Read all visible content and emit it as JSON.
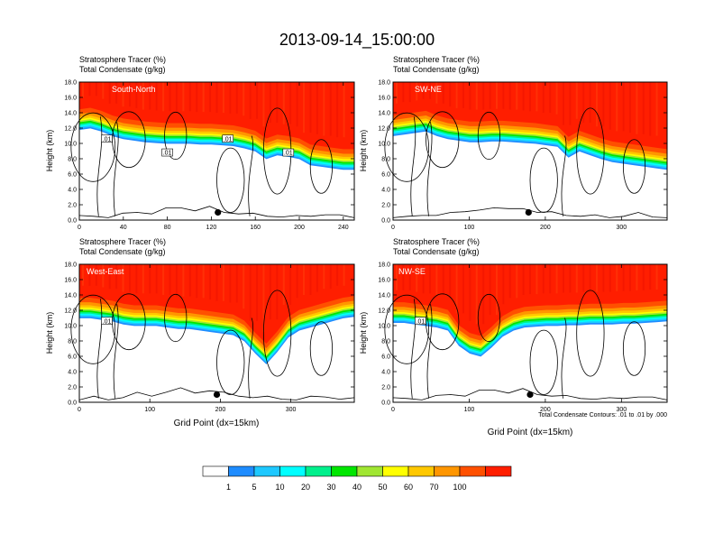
{
  "page": {
    "title": "2013-09-14_15:00:00"
  },
  "chart_data": [
    {
      "type": "heatmap",
      "panel": "South-North",
      "subtitle_lines": [
        "Stratosphere Tracer   (%)",
        "Total Condensate   (g/kg)"
      ],
      "ylabel": "Height (km)",
      "xlabel": "",
      "x_ticks": [
        0,
        40,
        80,
        120,
        160,
        200,
        240
      ],
      "y_ticks": [
        "0.0",
        "2.0",
        "4.0",
        "6.0",
        "8.0",
        "10.0",
        "12.0",
        "14.0",
        "16.0",
        "18.0"
      ],
      "xlim": [
        0,
        250
      ],
      "ylim": [
        0,
        18
      ],
      "tracer_base_km": [
        14.8,
        15.0,
        14.6,
        14.0,
        13.6,
        13.4,
        13.2,
        13.1,
        13.0,
        13.0,
        13.0,
        12.9,
        12.9,
        12.8,
        12.7,
        12.4,
        12.0,
        11.0,
        11.5,
        11.3,
        11.0,
        10.2,
        10.0,
        9.8,
        9.6,
        9.6
      ],
      "contour_labels": [
        ".01",
        ".01",
        ".01",
        ".01"
      ],
      "point_marker": {
        "x": 126,
        "y_km": 1.0
      }
    },
    {
      "type": "heatmap",
      "panel": "SW-NE",
      "subtitle_lines": [
        "Stratosphere Tracer   (%)",
        "Total Condensate   (g/kg)"
      ],
      "ylabel": "Height (km)",
      "xlabel": "",
      "x_ticks": [
        0,
        100,
        200,
        300
      ],
      "y_ticks": [
        "0.0",
        "2.0",
        "4.0",
        "6.0",
        "8.0",
        "10.0",
        "12.0",
        "14.0",
        "16.0",
        "18.0"
      ],
      "xlim": [
        0,
        360
      ],
      "ylim": [
        0,
        18
      ],
      "tracer_base_km": [
        14.0,
        14.2,
        14.4,
        14.6,
        14.0,
        13.6,
        13.4,
        13.2,
        13.2,
        13.3,
        13.3,
        13.2,
        13.1,
        13.0,
        12.8,
        12.6,
        11.2,
        12.0,
        11.5,
        11.0,
        10.6,
        10.4,
        10.2,
        10.0,
        9.8,
        9.6
      ],
      "contour_labels": [],
      "point_marker": {
        "x": 178,
        "y_km": 1.0
      }
    },
    {
      "type": "heatmap",
      "panel": "West-East",
      "subtitle_lines": [
        "Stratosphere Tracer   (%)",
        "Total Condensate   (g/kg)"
      ],
      "ylabel": "Height (km)",
      "xlabel": "Grid Point (dx=15km)",
      "x_ticks": [
        0,
        100,
        200,
        300
      ],
      "y_ticks": [
        "0.0",
        "2.0",
        "4.0",
        "6.0",
        "8.0",
        "10.0",
        "12.0",
        "14.0",
        "16.0",
        "18.0"
      ],
      "xlim": [
        0,
        390
      ],
      "ylim": [
        0,
        18
      ],
      "tracer_base_km": [
        14.0,
        14.0,
        13.8,
        13.6,
        13.2,
        13.0,
        13.0,
        13.0,
        12.8,
        12.6,
        12.6,
        12.4,
        12.2,
        12.0,
        11.8,
        11.0,
        9.4,
        8.0,
        9.6,
        11.5,
        12.4,
        12.8,
        13.2,
        13.6,
        14.0,
        14.2
      ],
      "contour_labels": [
        ".01"
      ],
      "point_marker": {
        "x": 195,
        "y_km": 1.0
      }
    },
    {
      "type": "heatmap",
      "panel": "NW-SE",
      "subtitle_lines": [
        "Stratosphere Tracer   (%)",
        "Total Condensate   (g/kg)"
      ],
      "ylabel": "Height (km)",
      "xlabel": "Grid Point (dx=15km)",
      "x_ticks": [
        0,
        100,
        200,
        300
      ],
      "y_ticks": [
        "0.0",
        "2.0",
        "4.0",
        "6.0",
        "8.0",
        "10.0",
        "12.0",
        "14.0",
        "16.0",
        "18.0"
      ],
      "xlim": [
        0,
        360
      ],
      "ylim": [
        0,
        18
      ],
      "tracer_base_km": [
        13.4,
        13.4,
        13.2,
        13.0,
        12.8,
        12.4,
        10.4,
        9.4,
        9.0,
        10.2,
        11.6,
        12.4,
        12.8,
        12.9,
        13.0,
        13.0,
        13.1,
        13.1,
        13.2,
        13.2,
        13.2,
        13.3,
        13.3,
        13.4,
        13.5,
        13.6
      ],
      "contour_labels": [
        ".01"
      ],
      "point_marker": {
        "x": 180,
        "y_km": 1.0
      },
      "note": "Total Condensate Contours: .01 to .01 by .000"
    }
  ],
  "colorbar": {
    "labels": [
      "1",
      "5",
      "10",
      "20",
      "30",
      "40",
      "50",
      "60",
      "70",
      "100"
    ],
    "colors": [
      "#ffffff",
      "#1e8cff",
      "#1ec8ff",
      "#00ffff",
      "#00f08c",
      "#00e600",
      "#a0e632",
      "#ffff00",
      "#ffc800",
      "#ff9600",
      "#ff5000",
      "#ff1e00"
    ]
  }
}
